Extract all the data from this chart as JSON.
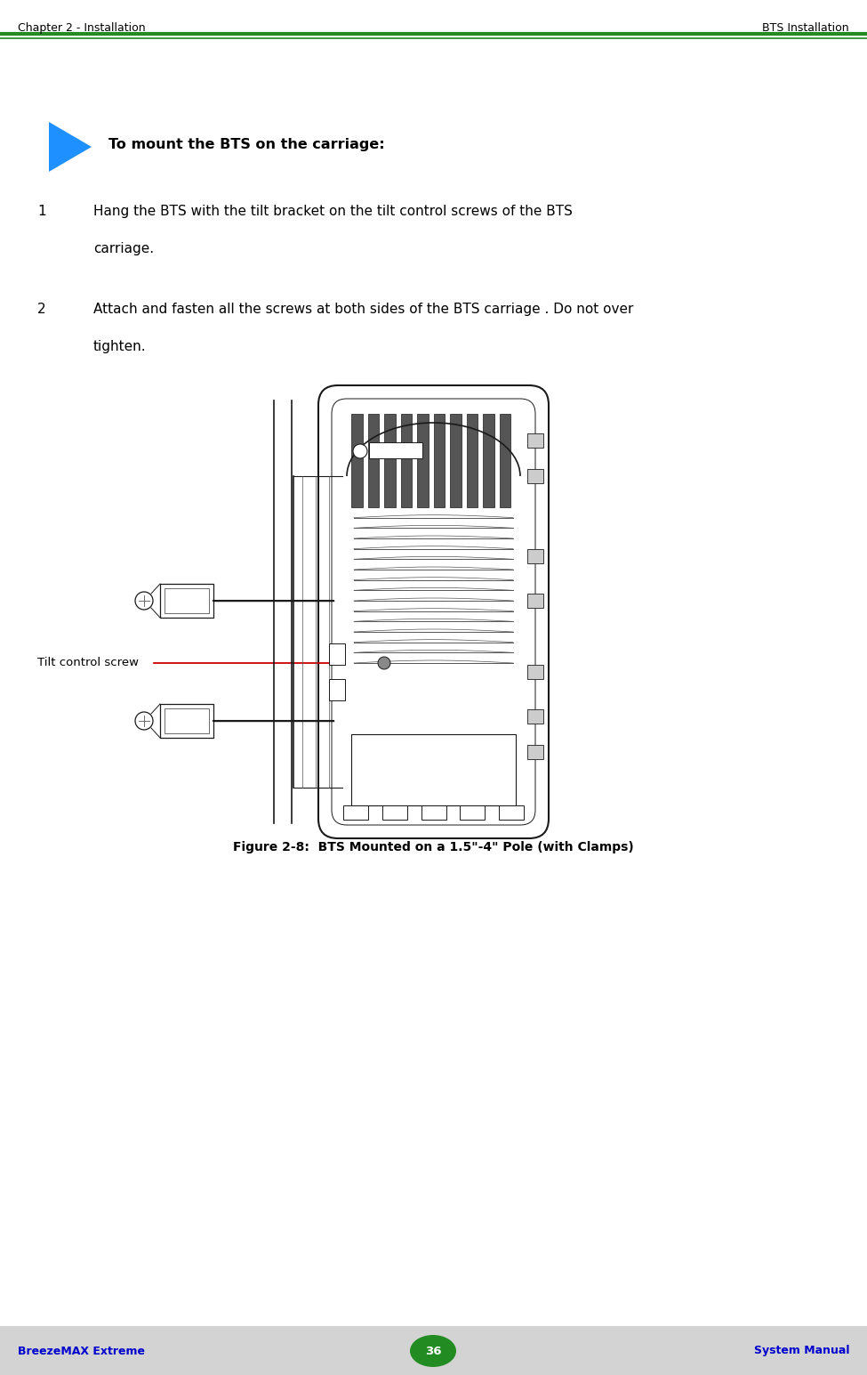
{
  "bg_color": "#ffffff",
  "header_text_left": "Chapter 2 - Installation",
  "header_text_right": "BTS Installation",
  "header_line_color": "#228B22",
  "footer_bg_color": "#d3d3d3",
  "footer_text_left": "BreezeMAX Extreme",
  "footer_text_center": "36",
  "footer_text_right": "System Manual",
  "footer_text_color": "#0000cc",
  "footer_badge_color": "#228B22",
  "section_title": "To mount the BTS on the carriage:",
  "step1_number": "1",
  "step1_text_line1": "Hang the BTS with the tilt bracket on the tilt control screws of the BTS",
  "step1_text_line2": "carriage.",
  "step2_number": "2",
  "step2_text_line1": "Attach and fasten all the screws at both sides of the BTS carriage . Do not over",
  "step2_text_line2": "tighten.",
  "figure_caption": "Figure 2-8:  BTS Mounted on a 1.5\"-4\" Pole (with Clamps)",
  "label_text": "Tilt control screw",
  "arrow_color": "#cc0000",
  "label_color": "#000000"
}
